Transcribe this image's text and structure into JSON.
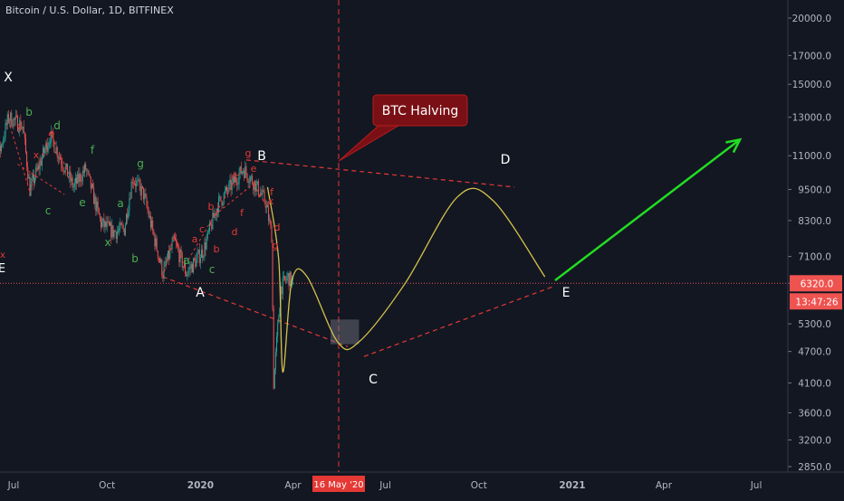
{
  "title": "Bitcoin / U.S. Dollar, 1D, BITFINEX",
  "colors": {
    "background": "#131722",
    "up_candle": "#26a69a",
    "down_candle": "#ef5350",
    "wave_red": "#e53935",
    "wave_green": "#4caf50",
    "projection": "#d4c24a",
    "arrow": "#22dd22",
    "label_white": "#ffffff",
    "price_tag": "#ef5350"
  },
  "chart_data": {
    "type": "candlestick",
    "title": "Bitcoin / U.S. Dollar, 1D, BITFINEX",
    "xlabel": "",
    "ylabel": "",
    "scale": "log",
    "ylim": [
      2700,
      23500
    ],
    "x_ticks": [
      "Jul",
      "Oct",
      "2020",
      "Apr",
      "16 May '20",
      "Jul",
      "Oct",
      "2021",
      "Apr",
      "Jul"
    ],
    "y_ticks": [
      20000.0,
      17000.0,
      15000.0,
      13000.0,
      11000.0,
      9500.0,
      8300.0,
      7100.0,
      6320.0,
      5300.0,
      4700.0,
      4100.0,
      3600.0,
      3200.0,
      2850.0
    ],
    "y_tick_labels": [
      "20000.0",
      "17000.0",
      "15000.0",
      "13000.0",
      "11000.0",
      "9500.0",
      "8300.0",
      "7100.0",
      "6320.0",
      "5300.0",
      "4700.0",
      "4100.0",
      "3600.0",
      "3200.0",
      "2850.0"
    ],
    "last_price": "6320.0",
    "countdown": "13:47:26",
    "halving_marker": "16 May '20",
    "price_path": [
      [
        "2019-06-01",
        8500
      ],
      [
        "2019-06-26",
        13000
      ],
      [
        "2019-07-10",
        12500
      ],
      [
        "2019-07-17",
        9500
      ],
      [
        "2019-07-25",
        10400
      ],
      [
        "2019-08-06",
        12000
      ],
      [
        "2019-08-29",
        9600
      ],
      [
        "2019-09-10",
        10400
      ],
      [
        "2019-09-25",
        8200
      ],
      [
        "2019-10-07",
        7900
      ],
      [
        "2019-10-18",
        8000
      ],
      [
        "2019-10-26",
        10000
      ],
      [
        "2019-11-06",
        9300
      ],
      [
        "2019-11-25",
        6600
      ],
      [
        "2019-12-06",
        7600
      ],
      [
        "2019-12-18",
        6600
      ],
      [
        "2020-01-04",
        7300
      ],
      [
        "2020-01-18",
        8900
      ],
      [
        "2020-02-12",
        10400
      ],
      [
        "2020-02-24",
        9700
      ],
      [
        "2020-03-05",
        9000
      ],
      [
        "2020-03-11",
        7800
      ],
      [
        "2020-03-13",
        4100
      ],
      [
        "2020-03-20",
        6200
      ],
      [
        "2020-03-27",
        6500
      ],
      [
        "2020-04-01",
        6320
      ]
    ],
    "wave_labels": {
      "major": [
        "X",
        "B",
        "A",
        "C",
        "D",
        "E"
      ],
      "minor_green": [
        "b",
        "d",
        "f",
        "e",
        "c",
        "a",
        "x",
        "g",
        "b",
        "a",
        "c"
      ],
      "minor_red": [
        "g",
        "e",
        "f",
        "d",
        "b",
        "c",
        "a",
        "b",
        "e",
        "x",
        "g",
        "d",
        "f",
        "e",
        "x",
        "x"
      ],
      "edge_labels": [
        "x",
        "E"
      ]
    },
    "projection_points": [
      [
        "2020-03-07",
        9600
      ],
      [
        "2020-03-18",
        7000
      ],
      [
        "2020-03-22",
        4300
      ],
      [
        "2020-03-31",
        6400
      ],
      [
        "2020-04-15",
        6500
      ],
      [
        "2020-05-15",
        4900
      ],
      [
        "2020-06-05",
        4900
      ],
      [
        "2020-07-20",
        6300
      ],
      [
        "2020-09-10",
        9200
      ],
      [
        "2020-10-15",
        9050
      ],
      [
        "2020-12-05",
        6500
      ]
    ],
    "trendlines": [
      {
        "from": [
          "2020-02-15",
          10800
        ],
        "to": [
          "2020-11-05",
          9600
        ]
      },
      {
        "from": [
          "2019-11-25",
          6500
        ],
        "to": [
          "2020-05-25",
          4800
        ]
      },
      {
        "from": [
          "2020-06-10",
          4600
        ],
        "to": [
          "2020-12-15",
          6250
        ]
      }
    ],
    "projection_box": {
      "from": [
        "2020-05-08",
        4850
      ],
      "to": [
        "2020-06-05",
        5400
      ]
    },
    "breakout_arrow": {
      "from": [
        "2020-12-15",
        6400
      ],
      "to": [
        "2021-06-15",
        11800
      ]
    },
    "annotation": "BTC Halving",
    "grid": false
  }
}
